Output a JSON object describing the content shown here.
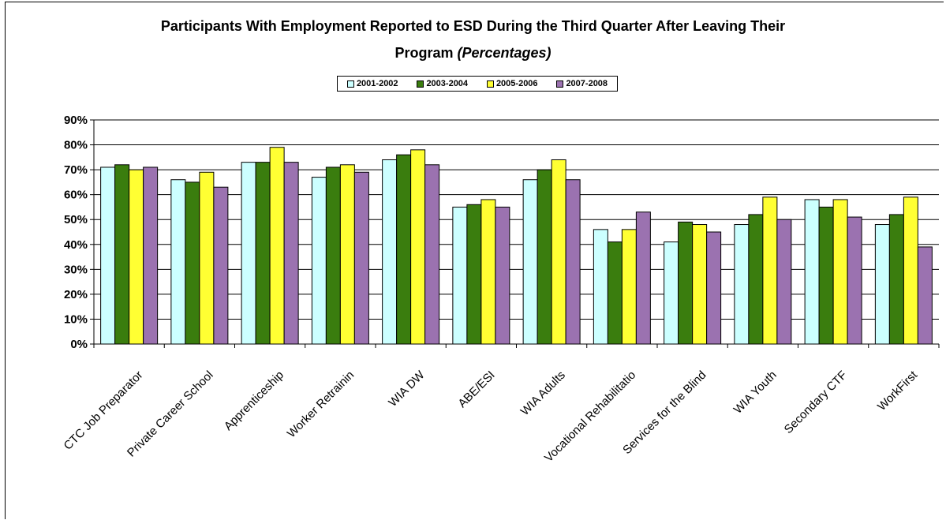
{
  "chart_data": {
    "type": "bar",
    "title": "Participants With Employment Reported to ESD During the Third Quarter After Leaving Their",
    "title_line2": "Program",
    "title_italic": "(Percentages)",
    "categories": [
      "CTC Job Preparator",
      "Private Career School",
      "Apprenticeship",
      "Worker Retrainin",
      "WIA DW",
      "ABE/ESI",
      "WIA Adults",
      "Vocational Rehabilitatio",
      "Services for the Blind",
      "WIA Youth",
      "Secondary CTF",
      "WorkFirst"
    ],
    "series": [
      {
        "name": "2001-2002",
        "color": "#ccffff",
        "values": [
          71,
          66,
          73,
          67,
          74,
          55,
          66,
          46,
          41,
          48,
          58,
          48
        ]
      },
      {
        "name": "2003-2004",
        "color": "#3a7d0e",
        "values": [
          72,
          65,
          73,
          71,
          76,
          56,
          70,
          41,
          49,
          52,
          55,
          52
        ]
      },
      {
        "name": "2005-2006",
        "color": "#ffff33",
        "values": [
          70,
          69,
          79,
          72,
          78,
          58,
          74,
          46,
          48,
          59,
          58,
          59
        ]
      },
      {
        "name": "2007-2008",
        "color": "#9b72b0",
        "values": [
          71,
          63,
          73,
          69,
          72,
          55,
          66,
          53,
          45,
          50,
          51,
          39
        ]
      }
    ],
    "ylim": [
      0,
      90
    ],
    "yticks": [
      "0%",
      "10%",
      "20%",
      "30%",
      "40%",
      "50%",
      "60%",
      "70%",
      "80%",
      "90%"
    ],
    "grid": true,
    "legend_position": "top-center"
  }
}
